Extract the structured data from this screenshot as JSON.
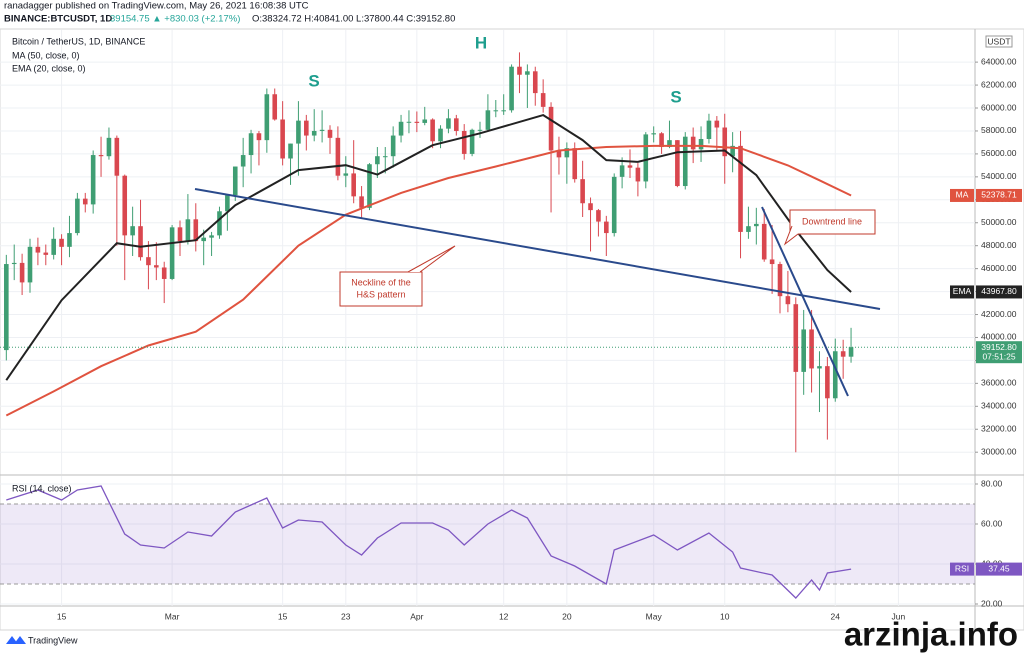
{
  "header": {
    "publisher": "ranadagger published on TradingView.com, May 26, 2021 16:08:38 UTC",
    "symbol": "BINANCE:BTCUSDT, 1D",
    "change": "39154.75 ▲ +830.03 (+2.17%)",
    "ohlc": "O:38324.72 H:40841.00 L:37800.44 C:39152.80"
  },
  "chart_data": [
    {
      "type": "candlestick",
      "title": "Bitcoin / TetherUS, 1D, BINANCE",
      "currency": "USDT",
      "up_color": "#3f9e73",
      "down_color": "#d9474f",
      "open": [
        38900,
        46400,
        46500,
        44800,
        47900,
        47400,
        47200,
        48600,
        47900,
        49100,
        52100,
        51600,
        55900,
        55800,
        57400,
        54100,
        48900,
        49700,
        47000,
        46300,
        46100,
        45100,
        49600,
        48400,
        50300,
        48400,
        48700,
        48900,
        51000,
        52400,
        54900,
        55900,
        57800,
        57200,
        61200,
        59000,
        55600,
        56900,
        58900,
        57600,
        58000,
        58100,
        57400,
        54100,
        54300,
        52300,
        51300,
        55100,
        55800,
        55800,
        57600,
        58800,
        58800,
        58700,
        59000,
        57100,
        58200,
        59100,
        58000,
        56000,
        58100,
        58100,
        59800,
        59800,
        59800,
        63600,
        62900,
        63200,
        61300,
        60100,
        56300,
        55700,
        56500,
        53800,
        51700,
        51100,
        50100,
        49100,
        54000,
        55000,
        54800,
        53600,
        57700,
        57800,
        56600,
        57200,
        53200,
        57500,
        56400,
        57300,
        58900,
        58300,
        55800,
        56700,
        49200,
        49700,
        49900,
        46800,
        46400,
        43600,
        42900,
        37000,
        40700,
        37300,
        37500,
        34700,
        38800,
        38324.72
      ],
      "high": [
        47200,
        48100,
        47300,
        48600,
        48700,
        48100,
        49600,
        49000,
        50600,
        52600,
        52600,
        56300,
        57500,
        58300,
        57600,
        54200,
        51400,
        52000,
        48400,
        48300,
        46600,
        49800,
        50200,
        52500,
        51700,
        49400,
        49200,
        51400,
        52400,
        54900,
        57400,
        58100,
        58000,
        61700,
        61700,
        60600,
        56900,
        60600,
        59400,
        59900,
        59800,
        58500,
        58400,
        55800,
        57200,
        53200,
        55200,
        56600,
        56600,
        58400,
        59400,
        59800,
        59700,
        60100,
        59100,
        58500,
        59900,
        59400,
        58600,
        58200,
        58800,
        61200,
        60700,
        61200,
        63800,
        64850,
        63800,
        63600,
        62500,
        60500,
        57500,
        57000,
        57000,
        55400,
        52200,
        51200,
        50600,
        54300,
        55700,
        56400,
        55200,
        57900,
        58400,
        57900,
        58900,
        57200,
        57900,
        58300,
        58400,
        59500,
        59300,
        59500,
        57900,
        58000,
        51400,
        51300,
        51200,
        49800,
        46600,
        45800,
        43500,
        42400,
        42400,
        38800,
        38300,
        39900,
        39800,
        40841
      ],
      "low": [
        38000,
        45000,
        43700,
        43900,
        46300,
        46300,
        46800,
        46300,
        47000,
        48900,
        50900,
        50800,
        54000,
        55500,
        48000,
        45000,
        47100,
        46700,
        44200,
        45000,
        43000,
        45000,
        47100,
        48100,
        47500,
        46300,
        47100,
        48600,
        49300,
        51900,
        53100,
        54300,
        55000,
        56100,
        58900,
        55000,
        53300,
        54100,
        56300,
        57100,
        57000,
        56000,
        53700,
        53100,
        51700,
        50400,
        51100,
        53900,
        54300,
        54800,
        57000,
        57800,
        57900,
        58500,
        56500,
        56500,
        57800,
        57600,
        55500,
        55800,
        57400,
        58000,
        59200,
        59400,
        59600,
        61300,
        60000,
        60200,
        59600,
        50900,
        54200,
        53400,
        53500,
        50500,
        47500,
        48800,
        47100,
        48800,
        53000,
        53900,
        52300,
        53000,
        57000,
        56000,
        56500,
        53100,
        52900,
        55200,
        55300,
        56900,
        56300,
        53400,
        54400,
        46900,
        48600,
        48100,
        46600,
        43800,
        42100,
        42200,
        30000,
        35000,
        35200,
        33500,
        31100,
        34400,
        36400,
        37800.44
      ],
      "close": [
        46400,
        46500,
        44800,
        47900,
        47400,
        47200,
        48600,
        47900,
        49100,
        52100,
        51600,
        55900,
        55800,
        57400,
        54100,
        48900,
        49700,
        47000,
        46300,
        46100,
        45100,
        49600,
        48400,
        50300,
        48400,
        48700,
        48900,
        51000,
        52400,
        54900,
        55900,
        57800,
        57200,
        61200,
        59000,
        55600,
        56900,
        58900,
        57600,
        58000,
        58100,
        57400,
        54100,
        54300,
        52300,
        51300,
        55100,
        55800,
        55800,
        57600,
        58800,
        58800,
        58700,
        59000,
        57100,
        58200,
        59100,
        58000,
        56000,
        58100,
        58100,
        59800,
        59800,
        59800,
        63600,
        62900,
        63200,
        61300,
        60100,
        56300,
        55700,
        56500,
        53800,
        51700,
        51100,
        50100,
        49100,
        54000,
        55000,
        54800,
        53600,
        57700,
        57800,
        56600,
        57200,
        53200,
        57500,
        56400,
        57300,
        58900,
        58300,
        55800,
        56700,
        49200,
        49700,
        49900,
        46800,
        46400,
        43600,
        42900,
        37000,
        40700,
        37300,
        37500,
        34700,
        38800,
        38324.72,
        39152.8
      ],
      "price_label": "39152.80",
      "countdown": "07:51:25",
      "overlays": [
        {
          "name": "MA (50, close, 0)",
          "tag": "MA",
          "color": "#e0533f",
          "x": [
            0,
            6,
            12,
            18,
            24,
            30,
            37,
            43,
            50,
            56,
            62,
            70,
            76,
            82,
            88,
            93,
            99,
            103,
            107
          ],
          "values": [
            33200,
            35300,
            37500,
            39300,
            40500,
            43300,
            48000,
            50700,
            52600,
            53900,
            54900,
            56300,
            56600,
            56700,
            56700,
            56500,
            55000,
            53700,
            52378.71
          ]
        },
        {
          "name": "EMA (20, close, 0)",
          "tag": "EMA",
          "color": "#222222",
          "x": [
            0,
            7,
            14,
            17,
            24,
            29,
            37,
            43,
            47,
            54,
            60,
            68,
            73,
            76,
            80,
            85,
            91,
            95,
            100,
            104,
            107
          ],
          "values": [
            36280,
            43250,
            48220,
            47900,
            48480,
            51530,
            54590,
            55020,
            54200,
            56760,
            57800,
            59380,
            57200,
            55460,
            55300,
            56150,
            56300,
            54150,
            49360,
            45870,
            43967.8
          ],
          "last_label": "43967.80"
        }
      ],
      "annotations": {
        "patterns": [
          "S",
          "H",
          "S"
        ],
        "neckline": [
          "Neckline of the",
          "H&S pattern"
        ],
        "downtrend": "Downtrend line"
      },
      "xlim": [
        -0.8,
        122.7
      ],
      "xticks": [
        {
          "value": 7,
          "label": "15"
        },
        {
          "value": 21,
          "label": "Mar"
        },
        {
          "value": 35,
          "label": "15"
        },
        {
          "value": 43,
          "label": "23"
        },
        {
          "value": 52,
          "label": "Apr"
        },
        {
          "value": 63,
          "label": "12"
        },
        {
          "value": 71,
          "label": "20"
        },
        {
          "value": 82,
          "label": "May"
        },
        {
          "value": 91,
          "label": "10"
        },
        {
          "value": 105,
          "label": "24"
        },
        {
          "value": 113,
          "label": "Jun"
        }
      ],
      "ylim": [
        28100,
        66800
      ],
      "yticks": [
        {
          "value": 30000,
          "label": "30000.00"
        },
        {
          "value": 32000,
          "label": "32000.00"
        },
        {
          "value": 34000,
          "label": "34000.00"
        },
        {
          "value": 36000,
          "label": "36000.00"
        },
        {
          "value": 38000,
          "label": "38000.00"
        },
        {
          "value": 40000,
          "label": "40000.00"
        },
        {
          "value": 42000,
          "label": "42000.00"
        },
        {
          "value": 44000,
          "label": "44000.00"
        },
        {
          "value": 46000,
          "label": "46000.00"
        },
        {
          "value": 48000,
          "label": "48000.00"
        },
        {
          "value": 50000,
          "label": "50000.00"
        },
        {
          "value": 52000,
          "label": "52000.00"
        },
        {
          "value": 54000,
          "label": "54000.00"
        },
        {
          "value": 56000,
          "label": "56000.00"
        },
        {
          "value": 58000,
          "label": "58000.00"
        },
        {
          "value": 60000,
          "label": "60000.00"
        },
        {
          "value": 62000,
          "label": "62000.00"
        },
        {
          "value": 64000,
          "label": "64000.00"
        }
      ],
      "grid": true
    },
    {
      "type": "line",
      "title": "RSI (14, close)",
      "tag": "RSI",
      "color": "#7e57c2",
      "x": [
        0,
        4,
        7,
        9,
        12,
        15,
        17,
        20,
        23,
        26,
        29,
        33,
        35,
        37,
        40,
        43,
        45,
        47,
        50,
        54,
        56,
        58,
        61,
        64,
        66,
        69,
        72,
        76,
        77,
        82,
        85,
        89,
        92,
        93,
        97,
        100,
        102,
        103,
        104,
        107
      ],
      "values": [
        72,
        77,
        72,
        77,
        79,
        55,
        49.5,
        48,
        56,
        54,
        66,
        73,
        58,
        62,
        61,
        49.5,
        44.5,
        53,
        60.5,
        60.5,
        57,
        49.5,
        60,
        67,
        63,
        44,
        39,
        30,
        47,
        54.5,
        47,
        55.5,
        46,
        38,
        34.5,
        23,
        32,
        27,
        35.5,
        37.45
      ],
      "band": [
        30,
        70
      ],
      "ylim": [
        19,
        84
      ],
      "yticks": [
        {
          "value": 20,
          "label": "20.00"
        },
        {
          "value": 40,
          "label": "40.00"
        },
        {
          "value": 60,
          "label": "60.00"
        },
        {
          "value": 80,
          "label": "80.00"
        }
      ],
      "grid": true
    }
  ],
  "footer": {
    "logo": "TradingView",
    "watermark": "arzinja.info"
  }
}
